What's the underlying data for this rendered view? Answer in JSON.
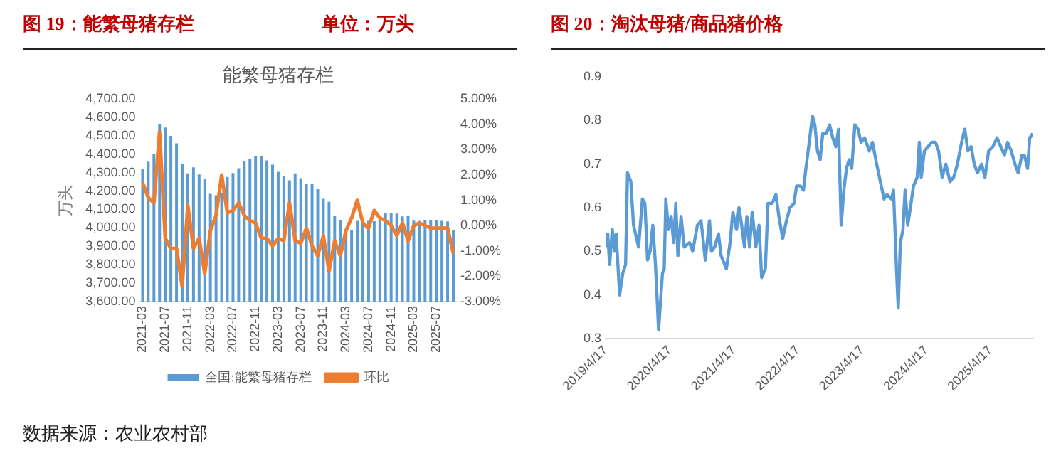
{
  "chart_data": [
    {
      "type": "bar",
      "title": "图 19：能繁母猪存栏",
      "subtitle": "单位：万头",
      "ylabel": "万头",
      "annotations": [
        "能繁母猪存栏",
        "数据来源：农业农村部"
      ],
      "categories": [
        "2021-03",
        null,
        null,
        null,
        "2021-07",
        null,
        null,
        null,
        "2021-11",
        null,
        null,
        null,
        "2022-03",
        null,
        null,
        null,
        "2022-07",
        null,
        null,
        null,
        "2022-11",
        null,
        null,
        null,
        "2023-03",
        null,
        null,
        null,
        "2023-07",
        null,
        null,
        null,
        "2023-11",
        null,
        null,
        null,
        "2024-03",
        null,
        null,
        null,
        "2024-07",
        null,
        null,
        null,
        "2024-11",
        null,
        null,
        null,
        "2025-03",
        null,
        null,
        null,
        "2025-07",
        null,
        null,
        null
      ],
      "series": [
        {
          "name": "全国:能繁母猪存栏",
          "color": "#5b9bd5",
          "values": [
            4318,
            4360,
            4400,
            4564,
            4545,
            4500,
            4459,
            4348,
            4296,
            4329,
            4290,
            4268,
            4185,
            4177,
            4192,
            4277,
            4298,
            4324,
            4362,
            4375,
            4390,
            4390,
            4367,
            4343,
            4305,
            4284,
            4258,
            4296,
            4270,
            4241,
            4240,
            4210,
            4158,
            4142,
            4067,
            4042,
            3992,
            3986,
            4038,
            4038,
            4038,
            4036,
            4062,
            4080,
            4080,
            4078,
            4062,
            4066,
            4039,
            4038,
            4042,
            4043,
            4042,
            4038,
            4035,
            3990
          ]
        },
        {
          "name": "环比",
          "type": "line",
          "axis": "y2",
          "color": "#ed7d31",
          "values": [
            1.7,
            1.1,
            0.9,
            3.7,
            -0.5,
            -0.9,
            -0.9,
            -2.4,
            0.8,
            -0.9,
            -0.5,
            -1.9,
            -0.2,
            0.4,
            2.0,
            0.5,
            0.6,
            0.9,
            0.4,
            0.2,
            0.1,
            -0.5,
            -0.5,
            -0.8,
            -0.5,
            -0.6,
            0.9,
            -0.6,
            -0.7,
            -0.1,
            -0.8,
            -1.2,
            -0.4,
            -1.8,
            -0.6,
            -1.2,
            -0.2,
            0.3,
            1.0,
            0.1,
            -0.1,
            0.6,
            0.3,
            0.2,
            0.0,
            -0.4,
            0.1,
            -0.6,
            0.0,
            0.1,
            0.0,
            -0.1,
            -0.1,
            -0.1,
            -0.1,
            -1.1
          ]
        }
      ],
      "ylim": [
        3600,
        4700
      ],
      "yticks": [
        {
          "value": 3600,
          "label": "3,600.00"
        },
        {
          "value": 3700,
          "label": "3,700.00"
        },
        {
          "value": 3800,
          "label": "3,800.00"
        },
        {
          "value": 3900,
          "label": "3,900.00"
        },
        {
          "value": 4000,
          "label": "4,000.00"
        },
        {
          "value": 4100,
          "label": "4,100.00"
        },
        {
          "value": 4200,
          "label": "4,200.00"
        },
        {
          "value": 4300,
          "label": "4,300.00"
        },
        {
          "value": 4400,
          "label": "4,400.00"
        },
        {
          "value": 4500,
          "label": "4,500.00"
        },
        {
          "value": 4600,
          "label": "4,600.00"
        },
        {
          "value": 4700,
          "label": "4,700.00"
        }
      ],
      "y2lim": [
        -3,
        5
      ],
      "y2ticks": [
        {
          "value": -3,
          "label": "-3.00%"
        },
        {
          "value": -2,
          "label": "-2.00%"
        },
        {
          "value": -1,
          "label": "-1.00%"
        },
        {
          "value": 0,
          "label": "0.00%"
        },
        {
          "value": 1,
          "label": "1.00%"
        },
        {
          "value": 2,
          "label": "2.00%"
        },
        {
          "value": 3,
          "label": "3.00%"
        },
        {
          "value": 4,
          "label": "4.00%"
        },
        {
          "value": 5,
          "label": "5.00%"
        }
      ],
      "legend": "bottom",
      "marker": "none"
    },
    {
      "type": "line",
      "title": "图 20：淘汰母猪/商品猪价格",
      "color": "#5b9bd5",
      "marker": "none",
      "x": [
        "2019-04-17",
        "2019-04-29",
        "2019-05-10",
        "2019-05-25",
        "2019-06-07",
        "2019-06-16",
        "2019-07-06",
        "2019-07-24",
        "2019-08-09",
        "2019-08-20",
        "2019-09-08",
        "2019-09-23",
        "2019-10-22",
        "2019-11-13",
        "2019-11-27",
        "2019-12-12",
        "2019-12-27",
        "2020-01-11",
        "2020-01-26",
        "2020-02-13",
        "2020-03-06",
        "2020-03-16",
        "2020-03-25",
        "2020-04-09",
        "2020-04-24",
        "2020-05-09",
        "2020-05-21",
        "2020-06-02",
        "2020-06-20",
        "2020-07-08",
        "2020-08-07",
        "2020-08-25",
        "2020-09-21",
        "2020-10-12",
        "2020-11-05",
        "2020-11-29",
        "2020-12-10",
        "2020-12-28",
        "2021-01-19",
        "2021-02-03",
        "2021-03-05",
        "2021-03-26",
        "2021-04-11",
        "2021-05-02",
        "2021-05-16",
        "2021-05-31",
        "2021-06-16",
        "2021-06-30",
        "2021-07-15",
        "2021-07-30",
        "2021-08-20",
        "2021-09-07",
        "2021-09-22",
        "2021-10-13",
        "2021-10-28",
        "2021-11-21",
        "2021-12-12",
        "2022-01-02",
        "2022-01-20",
        "2022-02-10",
        "2022-03-02",
        "2022-03-25",
        "2022-04-09",
        "2022-04-30",
        "2022-05-18",
        "2022-05-29",
        "2022-06-23",
        "2022-07-08",
        "2022-07-22",
        "2022-08-06",
        "2022-08-21",
        "2022-09-05",
        "2022-09-26",
        "2022-10-14",
        "2022-11-01",
        "2022-11-19",
        "2022-12-04",
        "2022-12-19",
        "2023-01-03",
        "2023-01-18",
        "2023-02-02",
        "2023-02-17",
        "2023-03-07",
        "2023-03-25",
        "2023-04-11",
        "2023-05-02",
        "2023-05-28",
        "2023-06-15",
        "2023-07-09",
        "2023-07-30",
        "2023-08-20",
        "2023-09-07",
        "2023-10-01",
        "2023-10-13",
        "2023-10-31",
        "2023-11-09",
        "2023-11-21",
        "2023-12-06",
        "2023-12-18",
        "2024-01-02",
        "2024-01-17",
        "2024-02-04",
        "2024-02-25",
        "2024-03-08",
        "2024-03-19",
        "2024-04-06",
        "2024-04-27",
        "2024-05-18",
        "2024-06-08",
        "2024-06-26",
        "2024-07-16",
        "2024-08-06",
        "2024-08-30",
        "2024-09-20",
        "2024-10-11",
        "2024-11-04",
        "2024-11-22",
        "2024-12-10",
        "2024-12-28",
        "2025-01-15",
        "2025-02-02",
        "2025-02-26",
        "2025-03-17",
        "2025-04-07",
        "2025-05-01",
        "2025-05-25",
        "2025-06-15",
        "2025-07-06",
        "2025-07-24",
        "2025-08-14",
        "2025-09-04",
        "2025-09-22",
        "2025-10-13",
        "2025-10-28",
        "2025-11-15",
        "2025-11-27",
        "2025-12-14"
      ],
      "values": [
        0.51,
        0.54,
        0.47,
        0.55,
        0.5,
        0.54,
        0.4,
        0.45,
        0.47,
        0.68,
        0.66,
        0.56,
        0.51,
        0.62,
        0.61,
        0.48,
        0.5,
        0.56,
        0.47,
        0.32,
        0.45,
        0.46,
        0.62,
        0.55,
        0.58,
        0.52,
        0.61,
        0.49,
        0.58,
        0.51,
        0.52,
        0.5,
        0.56,
        0.57,
        0.48,
        0.57,
        0.5,
        0.51,
        0.54,
        0.49,
        0.46,
        0.52,
        0.59,
        0.55,
        0.6,
        0.56,
        0.51,
        0.58,
        0.51,
        0.59,
        0.51,
        0.56,
        0.44,
        0.46,
        0.61,
        0.61,
        0.63,
        0.57,
        0.53,
        0.57,
        0.6,
        0.61,
        0.65,
        0.65,
        0.64,
        0.68,
        0.76,
        0.81,
        0.79,
        0.73,
        0.71,
        0.77,
        0.77,
        0.79,
        0.76,
        0.74,
        0.78,
        0.56,
        0.64,
        0.69,
        0.71,
        0.69,
        0.79,
        0.78,
        0.75,
        0.76,
        0.73,
        0.75,
        0.7,
        0.66,
        0.62,
        0.63,
        0.62,
        0.64,
        0.45,
        0.37,
        0.52,
        0.55,
        0.64,
        0.56,
        0.6,
        0.65,
        0.67,
        0.75,
        0.67,
        0.73,
        0.74,
        0.75,
        0.75,
        0.73,
        0.67,
        0.7,
        0.66,
        0.67,
        0.7,
        0.75,
        0.78,
        0.73,
        0.74,
        0.7,
        0.68,
        0.7,
        0.67,
        0.73,
        0.74,
        0.76,
        0.74,
        0.72,
        0.75,
        0.73,
        0.7,
        0.68,
        0.72,
        0.72,
        0.69,
        0.76,
        0.77
      ],
      "xlim": [
        "2019-04-17",
        "2025-12-17"
      ],
      "xticks": [
        {
          "value": "2019-04-17",
          "label": "2019/4/17"
        },
        {
          "value": "2020-04-17",
          "label": "2020/4/17"
        },
        {
          "value": "2021-04-17",
          "label": "2021/4/17"
        },
        {
          "value": "2022-04-17",
          "label": "2022/4/17"
        },
        {
          "value": "2023-04-17",
          "label": "2023/4/17"
        },
        {
          "value": "2024-04-17",
          "label": "2024/4/17"
        },
        {
          "value": "2025-04-17",
          "label": "2025/4/17"
        }
      ],
      "ylim": [
        0.3,
        0.9
      ],
      "yticks": [
        0.3,
        0.4,
        0.5,
        0.6,
        0.7,
        0.8,
        0.9
      ]
    }
  ]
}
